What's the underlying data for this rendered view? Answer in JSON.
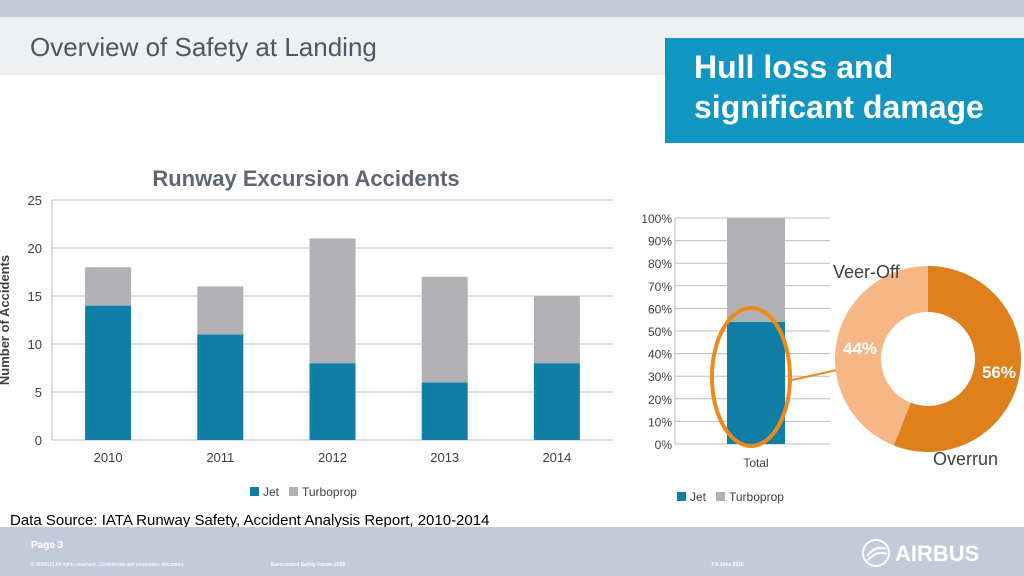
{
  "slide": {
    "title": "Overview of Safety at Landing",
    "callout": "Hull loss and significant damage",
    "source": "Data Source: IATA Runway Safety, Accident Analysis Report, 2010-2014"
  },
  "footer": {
    "page": "Page 3",
    "copyright": "© AIRBUS All rights reserved. Confidential and proprietary document.",
    "event": "Eurocontrol Safety Forum 2016",
    "date": "7-8 June 2016",
    "brand": "AIRBUS"
  },
  "colors": {
    "jet": "#0f7fa8",
    "turboprop": "#b1b1b5",
    "veer_off": "#f6b686",
    "overrun": "#e0801c",
    "callout": "#0f96c2"
  },
  "chart_data": [
    {
      "type": "bar",
      "stacked": true,
      "title": "Runway Excursion Accidents",
      "ylabel": "Number of Accidents",
      "ylim": [
        0,
        25
      ],
      "yticks": [
        0,
        5,
        10,
        15,
        20,
        25
      ],
      "categories": [
        "2010",
        "2011",
        "2012",
        "2013",
        "2014"
      ],
      "series": [
        {
          "name": "Jet",
          "values": [
            14,
            11,
            8,
            6,
            8
          ]
        },
        {
          "name": "Turboprop",
          "values": [
            4,
            5,
            13,
            11,
            7
          ]
        }
      ],
      "legend": "bottom",
      "grid": true
    },
    {
      "type": "bar",
      "stacked": true,
      "percent": true,
      "categories": [
        "Total"
      ],
      "ylim": [
        0,
        100
      ],
      "yticks": [
        "0%",
        "10%",
        "20%",
        "30%",
        "40%",
        "50%",
        "60%",
        "70%",
        "80%",
        "90%",
        "100%"
      ],
      "series": [
        {
          "name": "Jet",
          "values": [
            54
          ]
        },
        {
          "name": "Turboprop",
          "values": [
            46
          ]
        }
      ],
      "legend": "bottom",
      "grid": true
    },
    {
      "type": "pie",
      "donut": true,
      "labels": [
        "Overrun",
        "Veer-Off"
      ],
      "values": [
        56,
        44
      ],
      "value_labels": [
        "56%",
        "44%"
      ]
    }
  ]
}
